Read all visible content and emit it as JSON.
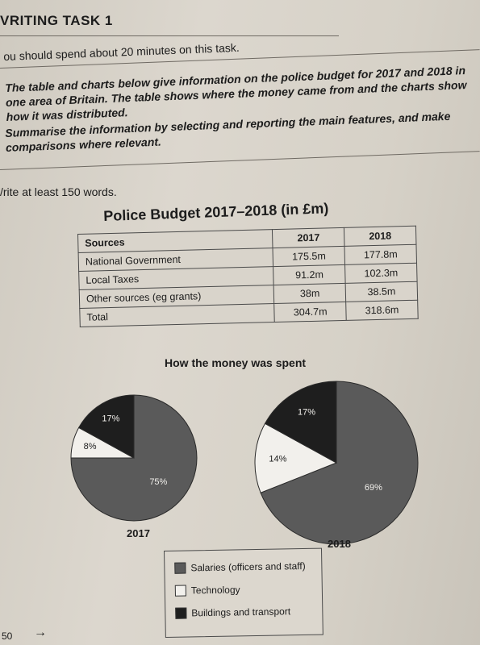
{
  "task": {
    "title": "VRITING TASK 1",
    "instruction": "ou should spend about 20 minutes on this task.",
    "prompt_1": "The table and charts below give information on the police budget for 2017 and 2018 in one area of Britain. The table shows where the money came from and the charts show how it was distributed.",
    "prompt_2": "Summarise the information by selecting and reporting the main features, and make comparisons where relevant.",
    "words": "/rite at least 150 words."
  },
  "table": {
    "title": "Police Budget 2017–2018 (in £m)",
    "headers": [
      "Sources",
      "2017",
      "2018"
    ],
    "rows": [
      [
        "National Government",
        "175.5m",
        "177.8m"
      ],
      [
        "Local Taxes",
        "91.2m",
        "102.3m"
      ],
      [
        "Other sources (eg grants)",
        "38m",
        "38.5m"
      ],
      [
        "Total",
        "304.7m",
        "318.6m"
      ]
    ]
  },
  "charts_heading": "How the money was spent",
  "colors": {
    "salaries": "#5a5a5a",
    "technology": "#f2f0ec",
    "buildings": "#1e1e1e"
  },
  "chart_data": [
    {
      "type": "pie",
      "title": "2017",
      "categories": [
        "Salaries (officers and staff)",
        "Technology",
        "Buildings and transport"
      ],
      "values": [
        75,
        8,
        17
      ],
      "labels": [
        "75%",
        "8%",
        "17%"
      ]
    },
    {
      "type": "pie",
      "title": "2018",
      "categories": [
        "Salaries (officers and staff)",
        "Technology",
        "Buildings and transport"
      ],
      "values": [
        69,
        14,
        17
      ],
      "labels": [
        "69%",
        "14%",
        "17%"
      ]
    }
  ],
  "legend": [
    {
      "label": "Salaries (officers and staff)",
      "key": "salaries"
    },
    {
      "label": "Technology",
      "key": "technology"
    },
    {
      "label": "Buildings and transport",
      "key": "buildings"
    }
  ],
  "footer": {
    "page_number": "50"
  }
}
